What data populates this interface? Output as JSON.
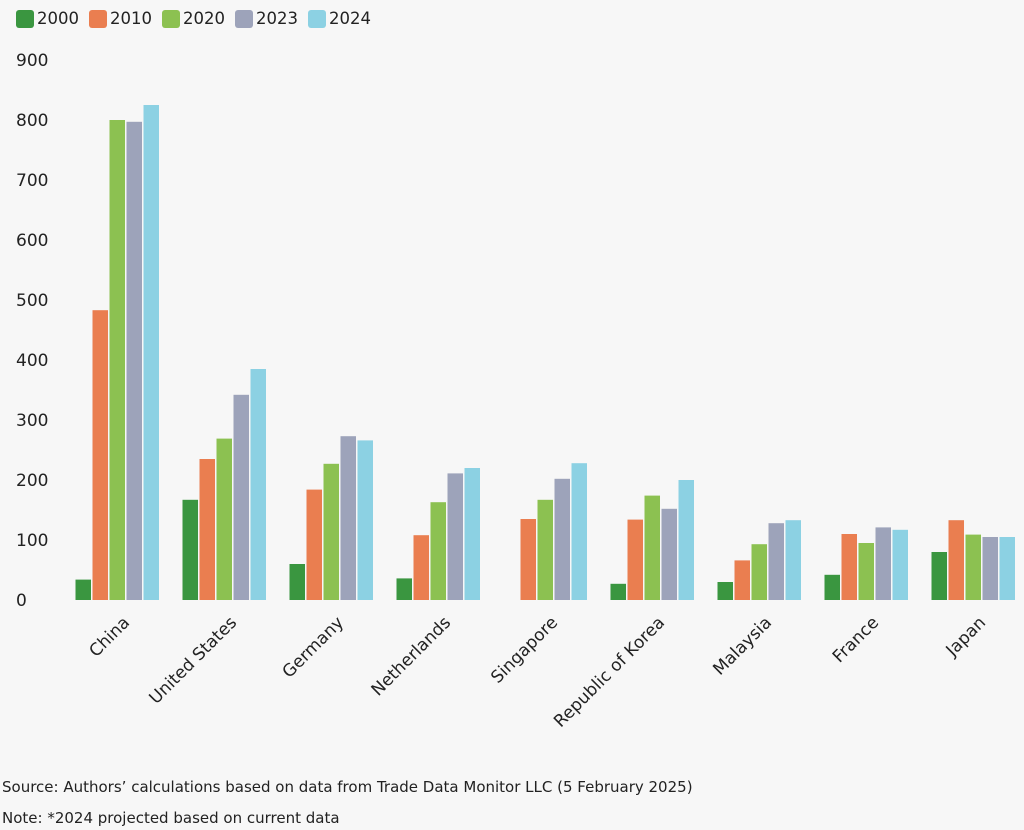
{
  "chart_data": {
    "type": "bar",
    "categories": [
      "China",
      "United States",
      "Germany",
      "Netherlands",
      "Singapore",
      "Republic of Korea",
      "Malaysia",
      "France",
      "Japan"
    ],
    "series": [
      {
        "name": "2000",
        "color": "#3a9640",
        "values": [
          34,
          167,
          60,
          36,
          null,
          27,
          30,
          42,
          80
        ]
      },
      {
        "name": "2010",
        "color": "#ea7e50",
        "values": [
          483,
          235,
          184,
          108,
          135,
          134,
          66,
          110,
          133
        ]
      },
      {
        "name": "2020",
        "color": "#8cc151",
        "values": [
          800,
          269,
          227,
          163,
          167,
          174,
          93,
          95,
          109
        ]
      },
      {
        "name": "2023",
        "color": "#9da3ba",
        "values": [
          797,
          342,
          273,
          211,
          202,
          152,
          128,
          121,
          105
        ]
      },
      {
        "name": "2024",
        "color": "#8cd1e3",
        "values": [
          825,
          385,
          266,
          220,
          228,
          200,
          133,
          117,
          105
        ]
      }
    ],
    "ylim": [
      0,
      900
    ],
    "yticks": [
      0,
      100,
      200,
      300,
      400,
      500,
      600,
      700,
      800,
      900
    ],
    "grid": false,
    "legend_position": "top-left"
  },
  "footer": {
    "source": "Source: Authors’ calculations based on data from Trade Data Monitor LLC (5 February 2025)",
    "note": "Note: *2024 projected based on current data"
  }
}
